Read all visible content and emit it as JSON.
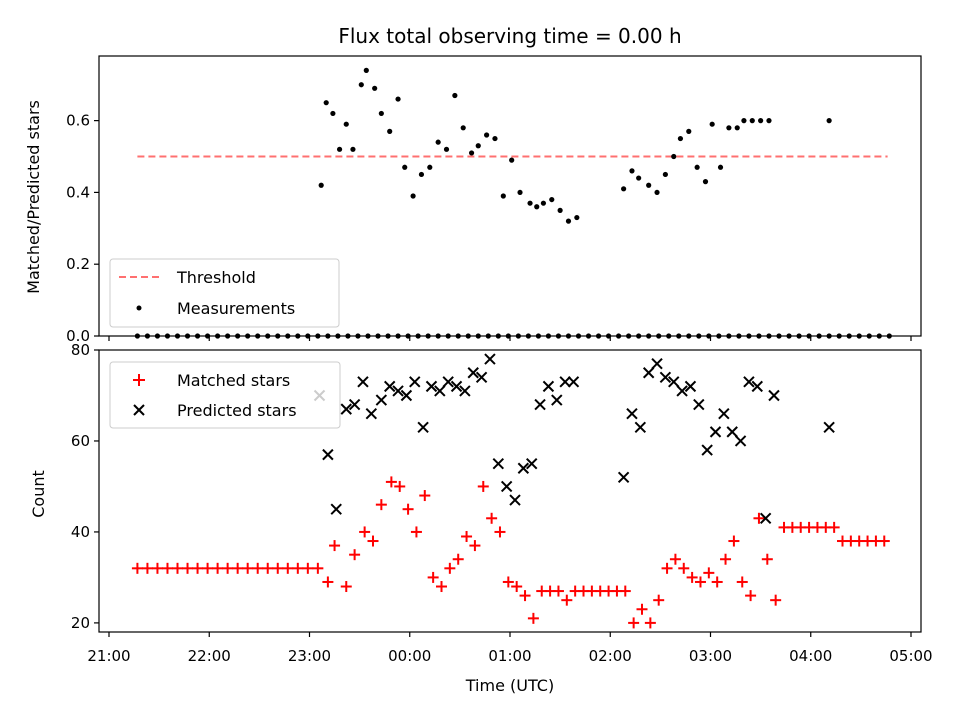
{
  "chart_data": [
    {
      "type": "scatter",
      "title": "Flux total observing time = 0.00 h",
      "ylabel": "Matched/Predicted stars",
      "xlim": [
        "21:00",
        "05:00"
      ],
      "ylim": [
        0.0,
        0.78
      ],
      "yticks": [
        "0.0",
        "0.2",
        "0.4",
        "0.6"
      ],
      "grid": false,
      "legend_position": "lower-left",
      "threshold": {
        "name": "Threshold",
        "value": 0.5,
        "x_start": "21:17",
        "x_end": "04:46",
        "color": "#ff7070"
      },
      "series": [
        {
          "name": "Measurements",
          "color": "#000000",
          "x": [
            "21:17",
            "21:23",
            "21:29",
            "21:35",
            "21:41",
            "21:47",
            "21:53",
            "21:59",
            "22:05",
            "22:11",
            "22:17",
            "22:23",
            "22:29",
            "22:35",
            "22:41",
            "22:47",
            "22:53",
            "22:59",
            "23:05",
            "23:11",
            "23:17",
            "23:23",
            "23:29",
            "23:35",
            "23:41",
            "23:47",
            "23:53",
            "23:59",
            "00:05",
            "00:11",
            "00:17",
            "00:23",
            "00:29",
            "00:35",
            "00:41",
            "00:47",
            "00:53",
            "00:59",
            "01:05",
            "01:11",
            "01:17",
            "01:23",
            "01:29",
            "01:35",
            "01:41",
            "01:47",
            "01:53",
            "01:59",
            "02:05",
            "02:11",
            "02:17",
            "02:23",
            "02:29",
            "02:35",
            "02:41",
            "02:47",
            "02:53",
            "02:59",
            "03:05",
            "03:11",
            "03:17",
            "03:23",
            "03:29",
            "03:35",
            "03:41",
            "03:47",
            "03:53",
            "03:59",
            "04:05",
            "04:11",
            "04:17",
            "04:23",
            "04:29",
            "04:35",
            "04:41",
            "04:47"
          ],
          "values": [
            0,
            0,
            0,
            0,
            0,
            0,
            0,
            0,
            0,
            0,
            0,
            0,
            0,
            0,
            0,
            0,
            0,
            0,
            0,
            0,
            0,
            0,
            0,
            0,
            0,
            0,
            0,
            0,
            0,
            0,
            0,
            0,
            0,
            0,
            0,
            0,
            0,
            0,
            0,
            0,
            0,
            0,
            0,
            0,
            0,
            0,
            0,
            0,
            0,
            0,
            0,
            0,
            0,
            0,
            0,
            0,
            0,
            0,
            0,
            0,
            0,
            0,
            0,
            0,
            0,
            0,
            0,
            0,
            0,
            0,
            0,
            0,
            0,
            0,
            0,
            0
          ]
        },
        {
          "name": "",
          "color": "#000000",
          "x": [
            "23:07",
            "23:10",
            "23:14",
            "23:18",
            "23:22",
            "23:26",
            "23:31",
            "23:34",
            "23:39",
            "23:43",
            "23:48",
            "23:53",
            "23:57",
            "00:02",
            "00:07",
            "00:12",
            "00:17",
            "00:22",
            "00:27",
            "00:32",
            "00:37",
            "00:41",
            "00:46",
            "00:51",
            "00:56",
            "01:01",
            "01:06",
            "01:12",
            "01:16",
            "01:20",
            "01:25",
            "01:30",
            "01:35",
            "01:40",
            "02:08",
            "02:13",
            "02:17",
            "02:23",
            "02:28",
            "02:33",
            "02:38",
            "02:42",
            "02:47",
            "02:52",
            "02:57",
            "03:01",
            "03:06",
            "03:11",
            "03:16",
            "03:20",
            "03:25",
            "03:30",
            "03:35",
            "04:11"
          ],
          "values": [
            0.42,
            0.65,
            0.62,
            0.52,
            0.59,
            0.52,
            0.7,
            0.74,
            0.69,
            0.62,
            0.57,
            0.66,
            0.47,
            0.39,
            0.45,
            0.47,
            0.54,
            0.52,
            0.67,
            0.58,
            0.51,
            0.53,
            0.56,
            0.55,
            0.39,
            0.49,
            0.4,
            0.37,
            0.36,
            0.37,
            0.38,
            0.35,
            0.32,
            0.33,
            0.41,
            0.46,
            0.44,
            0.42,
            0.4,
            0.45,
            0.5,
            0.55,
            0.57,
            0.47,
            0.43,
            0.59,
            0.47,
            0.58,
            0.58,
            0.6,
            0.6,
            0.6,
            0.6,
            0.6
          ]
        }
      ]
    },
    {
      "type": "scatter",
      "xlabel": "Time (UTC)",
      "ylabel": "Count",
      "xlim": [
        "21:00",
        "05:00"
      ],
      "ylim": [
        18,
        80
      ],
      "xticks": [
        "21:00",
        "22:00",
        "23:00",
        "00:00",
        "01:00",
        "02:00",
        "03:00",
        "04:00",
        "05:00"
      ],
      "yticks": [
        "20",
        "40",
        "60",
        "80"
      ],
      "grid": false,
      "legend_position": "upper-left",
      "series": [
        {
          "name": "Matched stars",
          "color": "#ff0000",
          "marker": "plus",
          "x": [
            "21:17",
            "21:23",
            "21:29",
            "21:35",
            "21:41",
            "21:47",
            "21:53",
            "21:59",
            "22:05",
            "22:11",
            "22:17",
            "22:23",
            "22:29",
            "22:35",
            "22:41",
            "22:47",
            "22:53",
            "22:59",
            "23:05",
            "23:11",
            "23:15",
            "23:22",
            "23:27",
            "23:33",
            "23:38",
            "23:43",
            "23:49",
            "23:54",
            "23:59",
            "00:04",
            "00:09",
            "00:14",
            "00:19",
            "00:24",
            "00:29",
            "00:34",
            "00:39",
            "00:44",
            "00:49",
            "00:54",
            "00:59",
            "01:04",
            "01:09",
            "01:14",
            "01:19",
            "01:24",
            "01:29",
            "01:34",
            "01:39",
            "01:44",
            "01:49",
            "01:54",
            "01:59",
            "02:04",
            "02:09",
            "02:14",
            "02:19",
            "02:24",
            "02:29",
            "02:34",
            "02:39",
            "02:44",
            "02:49",
            "02:54",
            "02:59",
            "03:04",
            "03:09",
            "03:14",
            "03:19",
            "03:24",
            "03:29",
            "03:34",
            "03:39",
            "03:44",
            "03:49",
            "03:54",
            "03:59",
            "04:04",
            "04:09",
            "04:14",
            "04:19",
            "04:24",
            "04:29",
            "04:34",
            "04:39",
            "04:44"
          ],
          "values": [
            32,
            32,
            32,
            32,
            32,
            32,
            32,
            32,
            32,
            32,
            32,
            32,
            32,
            32,
            32,
            32,
            32,
            32,
            32,
            29,
            37,
            28,
            35,
            40,
            38,
            46,
            51,
            50,
            45,
            40,
            48,
            30,
            28,
            32,
            34,
            39,
            37,
            50,
            43,
            40,
            29,
            28,
            26,
            21,
            27,
            27,
            27,
            25,
            27,
            27,
            27,
            27,
            27,
            27,
            27,
            20,
            23,
            20,
            25,
            32,
            34,
            32,
            30,
            29,
            31,
            29,
            34,
            38,
            29,
            26,
            43,
            34,
            25,
            41,
            41,
            41,
            41,
            41,
            41,
            41,
            38,
            38,
            38,
            38,
            38,
            38
          ]
        },
        {
          "name": "Predicted stars",
          "color": "#000000",
          "marker": "x",
          "x": [
            "23:06",
            "23:11",
            "23:16",
            "23:22",
            "23:27",
            "23:32",
            "23:37",
            "23:43",
            "23:48",
            "23:53",
            "23:58",
            "00:03",
            "00:08",
            "00:13",
            "00:18",
            "00:23",
            "00:28",
            "00:33",
            "00:38",
            "00:43",
            "00:48",
            "00:53",
            "00:58",
            "01:03",
            "01:08",
            "01:13",
            "01:18",
            "01:23",
            "01:28",
            "01:33",
            "01:38",
            "02:08",
            "02:13",
            "02:18",
            "02:23",
            "02:28",
            "02:33",
            "02:38",
            "02:43",
            "02:48",
            "02:53",
            "02:58",
            "03:03",
            "03:08",
            "03:13",
            "03:18",
            "03:23",
            "03:28",
            "03:33",
            "03:38",
            "04:11"
          ],
          "values": [
            70,
            57,
            45,
            67,
            68,
            73,
            66,
            69,
            72,
            71,
            70,
            73,
            63,
            72,
            71,
            73,
            72,
            71,
            75,
            74,
            78,
            55,
            50,
            47,
            54,
            55,
            68,
            72,
            69,
            73,
            73,
            52,
            66,
            63,
            75,
            77,
            74,
            73,
            71,
            72,
            68,
            58,
            62,
            66,
            62,
            60,
            73,
            72,
            43,
            70,
            63
          ]
        }
      ]
    }
  ]
}
